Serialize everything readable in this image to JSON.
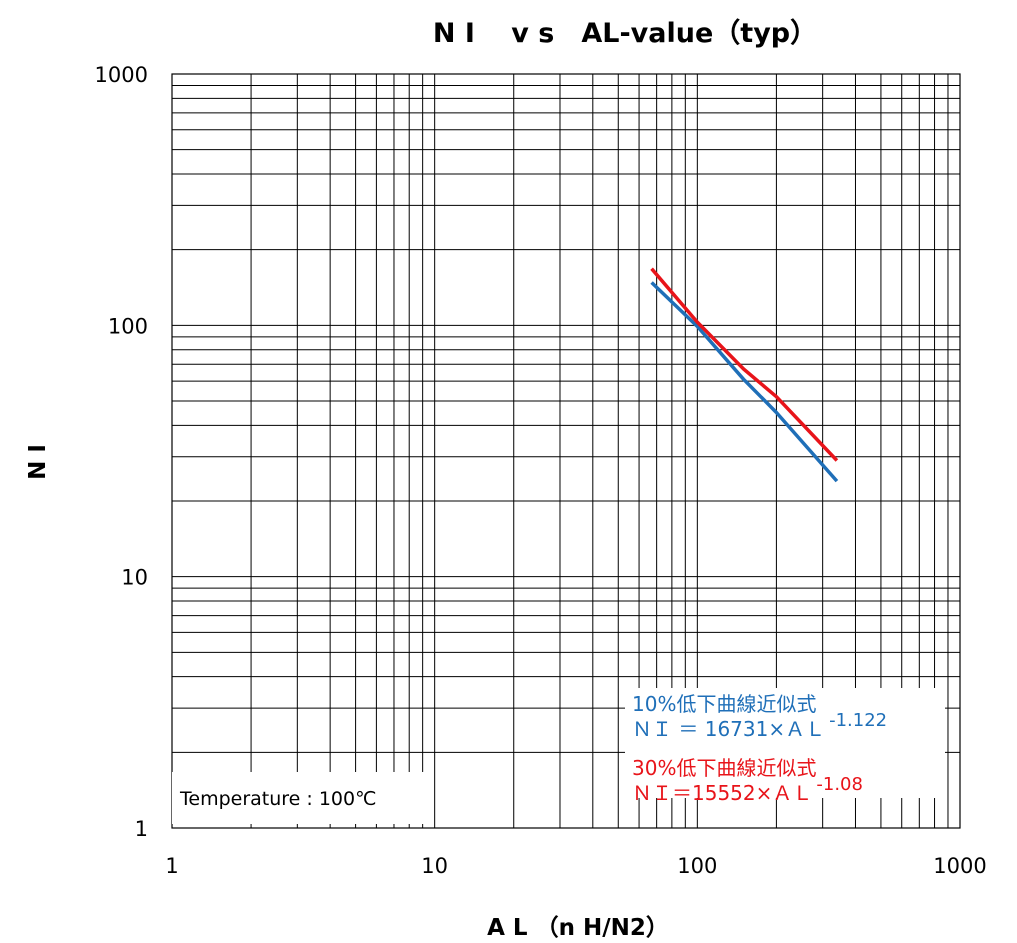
{
  "chart_data": {
    "type": "line",
    "title": "N I　 v s　AL-value（typ）",
    "xlabel": "A L （n H/N2）",
    "ylabel": "N I",
    "xscale": "log",
    "yscale": "log",
    "xlim": [
      1,
      1000
    ],
    "ylim": [
      1,
      1000
    ],
    "grid": true,
    "x_ticks": [
      "1",
      "10",
      "100",
      "1000"
    ],
    "y_ticks": [
      "1",
      "10",
      "100",
      "1000"
    ],
    "series": [
      {
        "color": "#1f6fb8",
        "x": [
          67,
          100,
          150,
          200,
          340
        ],
        "y": [
          148,
          99,
          61,
          45,
          24
        ]
      },
      {
        "color": "#e8141a",
        "x": [
          67,
          100,
          150,
          200,
          340
        ],
        "y": [
          168,
          103,
          67,
          52,
          29
        ]
      }
    ],
    "annotations": {
      "temperature": "Temperature : 100℃",
      "fit10_label": "10%低下曲線近似式",
      "fit10_formula": "ＮＩ ＝ 16731×ＡＬ",
      "fit10_exp": "-1.122",
      "fit30_label": "30%低下曲線近似式",
      "fit30_formula": "ＮＩ＝15552×ＡＬ",
      "fit30_exp": "-1.08"
    }
  }
}
